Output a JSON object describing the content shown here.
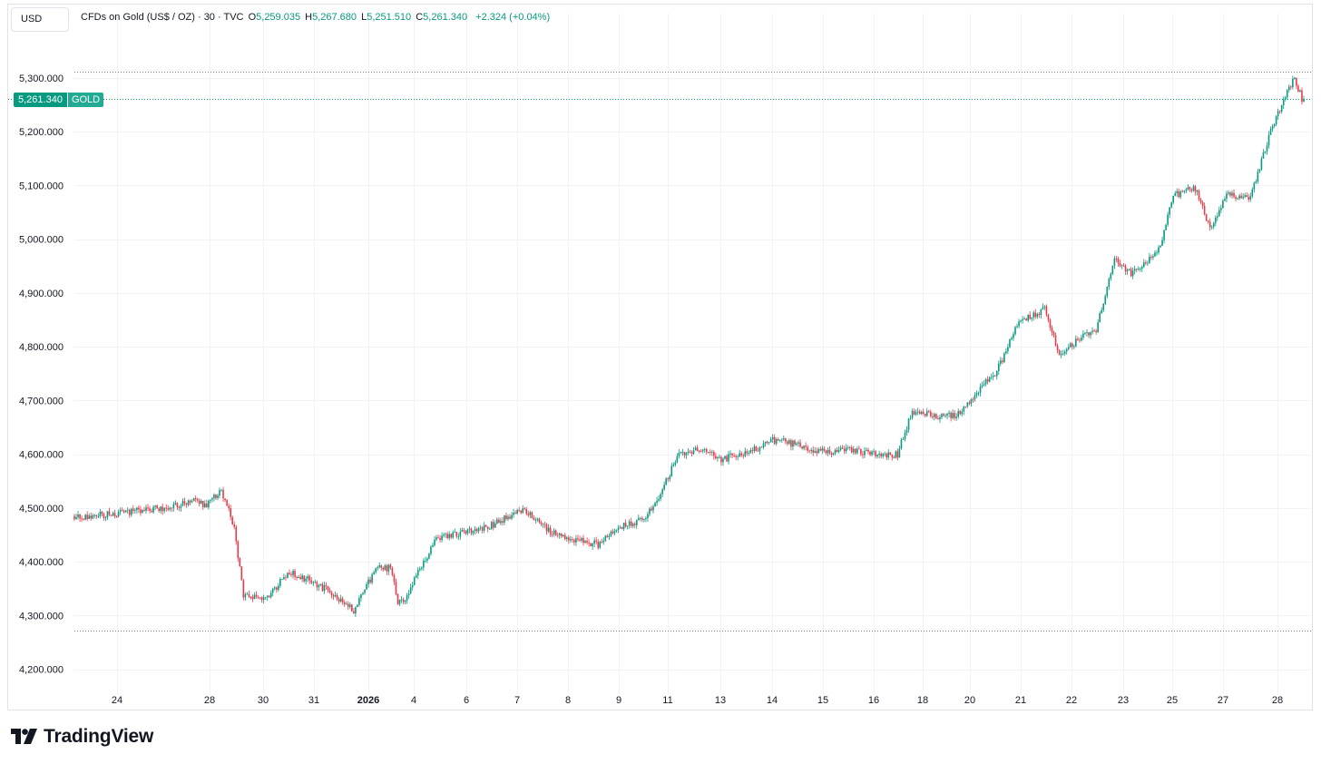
{
  "header": {
    "currency": "USD",
    "title": "CFDs on Gold (US$ / OZ) · 30 · TVC",
    "open_key": "O",
    "open": "5,259.035",
    "high_key": "H",
    "high": "5,267.680",
    "low_key": "L",
    "low": "5,251.510",
    "close_key": "C",
    "close": "5,261.340",
    "change": "+2.324 (+0.04%)"
  },
  "price_badge": {
    "price": "5,261.340",
    "symbol": "GOLD"
  },
  "brand": {
    "name": "TradingView"
  },
  "colors": {
    "up": "#089981",
    "down": "#f23645",
    "grid": "#f0f3fa",
    "text": "#131722"
  },
  "chart_data": {
    "type": "candlestick",
    "interval": "30",
    "y_ticks": [
      {
        "value": 5300,
        "label": "5,300.000"
      },
      {
        "value": 5200,
        "label": "5,200.000"
      },
      {
        "value": 5100,
        "label": "5,100.000"
      },
      {
        "value": 5000,
        "label": "5,000.000"
      },
      {
        "value": 4900,
        "label": "4,900.000"
      },
      {
        "value": 4800,
        "label": "4,800.000"
      },
      {
        "value": 4700,
        "label": "4,700.000"
      },
      {
        "value": 4600,
        "label": "4,600.000"
      },
      {
        "value": 4500,
        "label": "4,500.000"
      },
      {
        "value": 4400,
        "label": "4,400.000"
      },
      {
        "value": 4300,
        "label": "4,300.000"
      },
      {
        "value": 4200,
        "label": "4,200.000"
      }
    ],
    "ylim": [
      4170,
      5400
    ],
    "x_ticks": [
      {
        "label": "24",
        "bold": false
      },
      {
        "label": "28",
        "bold": false
      },
      {
        "label": "30",
        "bold": false
      },
      {
        "label": "31",
        "bold": false
      },
      {
        "label": "2026",
        "bold": true
      },
      {
        "label": "4",
        "bold": false
      },
      {
        "label": "6",
        "bold": false
      },
      {
        "label": "7",
        "bold": false
      },
      {
        "label": "8",
        "bold": false
      },
      {
        "label": "9",
        "bold": false
      },
      {
        "label": "11",
        "bold": false
      },
      {
        "label": "13",
        "bold": false
      },
      {
        "label": "14",
        "bold": false
      },
      {
        "label": "15",
        "bold": false
      },
      {
        "label": "16",
        "bold": false
      },
      {
        "label": "18",
        "bold": false
      },
      {
        "label": "20",
        "bold": false
      },
      {
        "label": "21",
        "bold": false
      },
      {
        "label": "22",
        "bold": false
      },
      {
        "label": "23",
        "bold": false
      },
      {
        "label": "25",
        "bold": false
      },
      {
        "label": "27",
        "bold": false
      },
      {
        "label": "28",
        "bold": false
      }
    ],
    "high_line": 5311,
    "low_line": 4272,
    "current_price": 5261.34,
    "trend": [
      [
        0,
        4485
      ],
      [
        4,
        4480
      ],
      [
        12,
        4487
      ],
      [
        26,
        4490
      ],
      [
        34,
        4495
      ],
      [
        54,
        4502
      ],
      [
        64,
        4512
      ],
      [
        72,
        4507
      ],
      [
        80,
        4530
      ],
      [
        87,
        4465
      ],
      [
        92,
        4335
      ],
      [
        104,
        4330
      ],
      [
        116,
        4380
      ],
      [
        126,
        4368
      ],
      [
        136,
        4350
      ],
      [
        145,
        4328
      ],
      [
        152,
        4310
      ],
      [
        164,
        4385
      ],
      [
        172,
        4390
      ],
      [
        176,
        4325
      ],
      [
        180,
        4330
      ],
      [
        196,
        4440
      ],
      [
        220,
        4460
      ],
      [
        230,
        4472
      ],
      [
        242,
        4495
      ],
      [
        248,
        4487
      ],
      [
        254,
        4468
      ],
      [
        262,
        4450
      ],
      [
        274,
        4440
      ],
      [
        285,
        4432
      ],
      [
        300,
        4470
      ],
      [
        310,
        4480
      ],
      [
        318,
        4520
      ],
      [
        328,
        4595
      ],
      [
        340,
        4608
      ],
      [
        352,
        4590
      ],
      [
        366,
        4603
      ],
      [
        380,
        4625
      ],
      [
        392,
        4620
      ],
      [
        404,
        4603
      ],
      [
        418,
        4608
      ],
      [
        430,
        4602
      ],
      [
        440,
        4598
      ],
      [
        448,
        4600
      ],
      [
        456,
        4680
      ],
      [
        470,
        4668
      ],
      [
        482,
        4675
      ],
      [
        492,
        4720
      ],
      [
        502,
        4755
      ],
      [
        514,
        4845
      ],
      [
        528,
        4872
      ],
      [
        536,
        4785
      ],
      [
        546,
        4812
      ],
      [
        556,
        4830
      ],
      [
        566,
        4960
      ],
      [
        576,
        4935
      ],
      [
        590,
        4980
      ],
      [
        598,
        5080
      ],
      [
        610,
        5095
      ],
      [
        618,
        5020
      ],
      [
        628,
        5085
      ],
      [
        640,
        5075
      ],
      [
        650,
        5190
      ],
      [
        660,
        5275
      ],
      [
        664,
        5300
      ],
      [
        668,
        5262
      ]
    ]
  }
}
